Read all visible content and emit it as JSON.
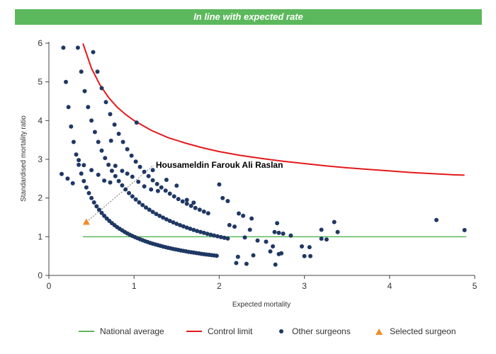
{
  "header": {
    "banner_text": "In line with expected rate"
  },
  "colors": {
    "banner": "#5cb85c",
    "national_average": "#5cb85c",
    "control_limit": "#e31a1c",
    "other_surgeons": "#1f3864",
    "selected_surgeon": "#f28c28"
  },
  "chart_data": {
    "type": "scatter",
    "xlabel": "Expected mortality",
    "ylabel": "Standardised mortality ratio",
    "xlim": [
      0,
      5
    ],
    "ylim": [
      0,
      6
    ],
    "x_ticks": [
      "0",
      "1",
      "2",
      "3",
      "4",
      "5"
    ],
    "y_ticks": [
      "0",
      "1",
      "2",
      "3",
      "4",
      "5",
      "6"
    ],
    "grid": false,
    "legend_position": "bottom",
    "annotation": {
      "text": "Housameldin Farouk Ali Raslan",
      "x": 1.23,
      "y": 2.85
    },
    "national_average": {
      "name": "National average",
      "y": 1,
      "x_range": [
        0.4,
        4.9
      ]
    },
    "control_limit": {
      "name": "Control limit",
      "points": [
        [
          0.4,
          5.99
        ],
        [
          0.5,
          5.35
        ],
        [
          0.6,
          4.92
        ],
        [
          0.7,
          4.6
        ],
        [
          0.8,
          4.35
        ],
        [
          0.9,
          4.16
        ],
        [
          1.0,
          4.0
        ],
        [
          1.2,
          3.75
        ],
        [
          1.4,
          3.56
        ],
        [
          1.6,
          3.42
        ],
        [
          1.8,
          3.3
        ],
        [
          2.0,
          3.2
        ],
        [
          2.25,
          3.1
        ],
        [
          2.5,
          3.02
        ],
        [
          2.75,
          2.95
        ],
        [
          3.0,
          2.89
        ],
        [
          3.25,
          2.83
        ],
        [
          3.5,
          2.78
        ],
        [
          3.75,
          2.74
        ],
        [
          4.0,
          2.7
        ],
        [
          4.25,
          2.66
        ],
        [
          4.5,
          2.63
        ],
        [
          4.75,
          2.6
        ],
        [
          4.88,
          2.59
        ]
      ]
    },
    "selected_surgeon": {
      "name": "Selected surgeon",
      "x": 0.44,
      "y": 1.38
    },
    "other_surgeons": {
      "name": "Other surgeons",
      "bands": [
        {
          "k": 1,
          "x_from": 0.02,
          "x_to": 1.98,
          "x_step": 0.03
        },
        {
          "k": 2,
          "x_from": 0.02,
          "x_to": 2.1,
          "x_step": 0.04
        },
        {
          "k": 3,
          "x_from": 0.02,
          "x_to": 1.9,
          "x_step": 0.05
        }
      ],
      "points": [
        [
          0.15,
          2.62
        ],
        [
          0.22,
          2.5
        ],
        [
          0.28,
          2.38
        ],
        [
          0.35,
          2.98
        ],
        [
          0.41,
          2.85
        ],
        [
          0.5,
          2.72
        ],
        [
          0.58,
          2.6
        ],
        [
          0.65,
          2.45
        ],
        [
          0.72,
          2.4
        ],
        [
          0.78,
          2.83
        ],
        [
          0.86,
          2.7
        ],
        [
          0.92,
          2.63
        ],
        [
          0.98,
          2.55
        ],
        [
          1.05,
          2.42
        ],
        [
          1.12,
          2.3
        ],
        [
          1.2,
          2.22
        ],
        [
          1.28,
          2.18
        ],
        [
          1.38,
          2.47
        ],
        [
          1.5,
          2.32
        ],
        [
          1.62,
          1.95
        ],
        [
          1.7,
          1.88
        ],
        [
          0.73,
          3.48
        ],
        [
          1.03,
          3.95
        ],
        [
          1.22,
          2.72
        ],
        [
          2.0,
          2.35
        ],
        [
          2.04,
          2.0
        ],
        [
          2.1,
          1.92
        ],
        [
          2.23,
          1.6
        ],
        [
          2.28,
          1.54
        ],
        [
          2.38,
          1.47
        ],
        [
          2.12,
          1.3
        ],
        [
          2.18,
          1.26
        ],
        [
          2.36,
          1.18
        ],
        [
          2.65,
          1.12
        ],
        [
          2.7,
          1.1
        ],
        [
          2.75,
          1.08
        ],
        [
          2.84,
          1.03
        ],
        [
          2.68,
          1.35
        ],
        [
          2.3,
          0.98
        ],
        [
          2.45,
          0.9
        ],
        [
          2.55,
          0.87
        ],
        [
          2.63,
          0.75
        ],
        [
          2.7,
          0.55
        ],
        [
          2.66,
          0.28
        ],
        [
          2.4,
          0.52
        ],
        [
          2.22,
          0.48
        ],
        [
          2.2,
          0.32
        ],
        [
          2.32,
          0.3
        ],
        [
          2.6,
          0.62
        ],
        [
          2.73,
          0.57
        ],
        [
          3.2,
          1.18
        ],
        [
          3.35,
          1.38
        ],
        [
          3.39,
          1.12
        ],
        [
          3.2,
          0.95
        ],
        [
          3.26,
          0.93
        ],
        [
          2.97,
          0.75
        ],
        [
          3.06,
          0.73
        ],
        [
          3.0,
          0.5
        ],
        [
          3.07,
          0.5
        ],
        [
          4.55,
          1.43
        ],
        [
          4.88,
          1.17
        ]
      ]
    }
  },
  "legend": {
    "national_average": "National average",
    "control_limit": "Control limit",
    "other_surgeons": "Other surgeons",
    "selected_surgeon": "Selected surgeon"
  }
}
